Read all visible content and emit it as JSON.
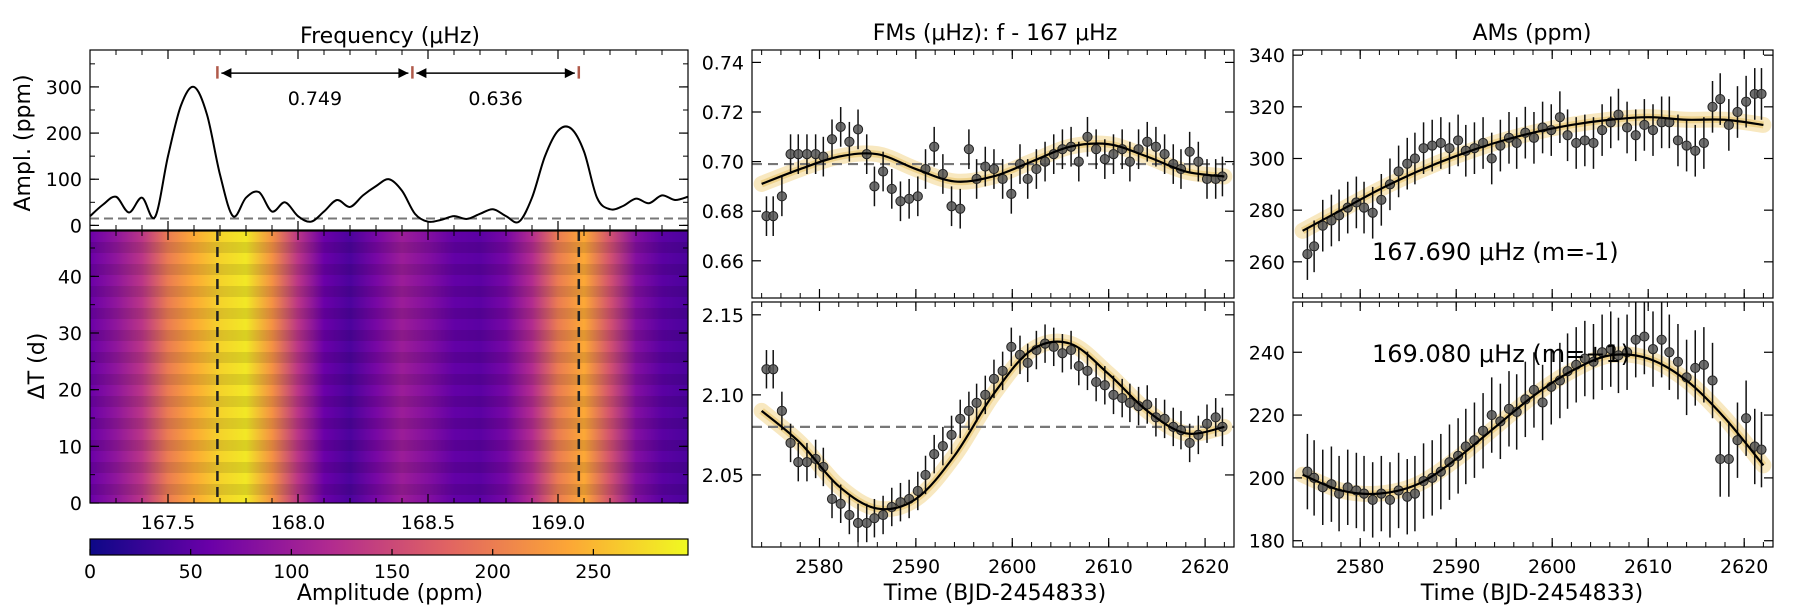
{
  "chart_data": [
    {
      "id": "spectrum",
      "type": "line",
      "title": "Frequency (μHz)",
      "ylabel": "Ampl. (ppm)",
      "xlim": [
        167.2,
        169.5
      ],
      "ylim": [
        -10,
        380
      ],
      "yticks": [
        0,
        100,
        200,
        300
      ],
      "x": [
        167.2,
        167.25,
        167.3,
        167.35,
        167.4,
        167.45,
        167.5,
        167.55,
        167.6,
        167.65,
        167.7,
        167.75,
        167.8,
        167.85,
        167.9,
        167.95,
        168.0,
        168.05,
        168.1,
        168.15,
        168.2,
        168.25,
        168.3,
        168.35,
        168.4,
        168.45,
        168.5,
        168.55,
        168.6,
        168.65,
        168.7,
        168.75,
        168.8,
        168.85,
        168.9,
        168.95,
        169.0,
        169.05,
        169.1,
        169.15,
        169.2,
        169.25,
        169.3,
        169.35,
        169.4,
        169.45,
        169.5
      ],
      "y": [
        20,
        45,
        62,
        28,
        60,
        18,
        150,
        260,
        300,
        240,
        110,
        20,
        60,
        72,
        30,
        50,
        20,
        8,
        30,
        55,
        40,
        65,
        85,
        100,
        75,
        25,
        8,
        12,
        20,
        14,
        25,
        35,
        20,
        8,
        60,
        150,
        205,
        210,
        160,
        60,
        35,
        42,
        58,
        48,
        65,
        55,
        62
      ],
      "threshold": 15,
      "markers": [
        167.69,
        168.44,
        169.08
      ],
      "annotations": [
        {
          "text": "0.749",
          "from": 167.69,
          "to": 168.44,
          "level": 330
        },
        {
          "text": "0.636",
          "from": 168.44,
          "to": 169.08,
          "level": 330
        }
      ]
    },
    {
      "id": "heatmap",
      "type": "heatmap",
      "ylabel": "ΔT (d)",
      "xlim": [
        167.2,
        169.5
      ],
      "ylim": [
        0,
        48
      ],
      "xticks": [
        167.5,
        168.0,
        168.5,
        169.0
      ],
      "xtick_labels": [
        "167.5",
        "168.0",
        "168.5",
        "169.0"
      ],
      "yticks": [
        0,
        10,
        20,
        30,
        40
      ],
      "vlines": [
        167.69,
        169.08
      ],
      "profile": [
        [
          167.2,
          60
        ],
        [
          167.3,
          90
        ],
        [
          167.4,
          130
        ],
        [
          167.5,
          200
        ],
        [
          167.6,
          240
        ],
        [
          167.7,
          270
        ],
        [
          167.8,
          285
        ],
        [
          167.9,
          220
        ],
        [
          168.0,
          130
        ],
        [
          168.1,
          60
        ],
        [
          168.2,
          40
        ],
        [
          168.3,
          70
        ],
        [
          168.4,
          100
        ],
        [
          168.5,
          80
        ],
        [
          168.6,
          55
        ],
        [
          168.7,
          50
        ],
        [
          168.8,
          70
        ],
        [
          168.9,
          120
        ],
        [
          169.0,
          200
        ],
        [
          169.1,
          240
        ],
        [
          169.2,
          160
        ],
        [
          169.3,
          80
        ],
        [
          169.4,
          50
        ],
        [
          169.5,
          40
        ]
      ]
    },
    {
      "id": "colorbar",
      "type": "colorbar",
      "xlabel": "Amplitude (ppm)",
      "range": [
        0,
        297
      ],
      "ticks": [
        0,
        50,
        100,
        150,
        200,
        250
      ],
      "colors": [
        "#0d0887",
        "#6a00a8",
        "#b12a90",
        "#e16462",
        "#fca636",
        "#f0f921"
      ]
    },
    {
      "id": "fm1",
      "type": "scatter",
      "title": "FMs (μHz): f - 167 μHz",
      "xlim": [
        2573,
        2623
      ],
      "ylim": [
        0.645,
        0.745
      ],
      "yticks": [
        0.66,
        0.68,
        0.7,
        0.72,
        0.74
      ],
      "ytick_labels": [
        "0.66",
        "0.68",
        "0.70",
        "0.72",
        "0.74"
      ],
      "reference": 0.699,
      "x": [
        2574.5,
        2575.2,
        2576.1,
        2577.0,
        2577.8,
        2578.7,
        2579.6,
        2580.4,
        2581.3,
        2582.2,
        2583.1,
        2584.0,
        2584.9,
        2585.7,
        2586.6,
        2587.5,
        2588.4,
        2589.3,
        2590.2,
        2591.0,
        2591.9,
        2592.8,
        2593.7,
        2594.6,
        2595.5,
        2596.3,
        2597.2,
        2598.1,
        2599.0,
        2599.9,
        2600.8,
        2601.6,
        2602.5,
        2603.4,
        2604.3,
        2605.2,
        2606.1,
        2606.9,
        2607.8,
        2608.7,
        2609.6,
        2610.5,
        2611.4,
        2612.2,
        2613.1,
        2614.0,
        2614.9,
        2615.8,
        2616.7,
        2617.5,
        2618.4,
        2619.3,
        2620.2,
        2621.1,
        2621.8
      ],
      "y": [
        0.678,
        0.678,
        0.686,
        0.703,
        0.703,
        0.703,
        0.703,
        0.702,
        0.709,
        0.714,
        0.708,
        0.713,
        0.703,
        0.69,
        0.696,
        0.689,
        0.684,
        0.685,
        0.686,
        0.697,
        0.706,
        0.695,
        0.682,
        0.681,
        0.705,
        0.693,
        0.698,
        0.697,
        0.693,
        0.687,
        0.699,
        0.693,
        0.697,
        0.7,
        0.703,
        0.705,
        0.706,
        0.7,
        0.71,
        0.705,
        0.701,
        0.703,
        0.705,
        0.7,
        0.705,
        0.708,
        0.706,
        0.703,
        0.699,
        0.697,
        0.704,
        0.7,
        0.693,
        0.693,
        0.694
      ],
      "err": 0.008,
      "model_x": [
        2574,
        2578,
        2582,
        2586,
        2590,
        2594,
        2598,
        2602,
        2606,
        2610,
        2614,
        2618,
        2622
      ],
      "model_y": [
        0.691,
        0.697,
        0.702,
        0.703,
        0.697,
        0.692,
        0.694,
        0.7,
        0.706,
        0.707,
        0.702,
        0.696,
        0.694
      ]
    },
    {
      "id": "fm2",
      "type": "scatter",
      "xlabel": "Time (BJD-2454833)",
      "xlim": [
        2573,
        2623
      ],
      "ylim": [
        2.005,
        2.158
      ],
      "xticks": [
        2580,
        2590,
        2600,
        2610,
        2620
      ],
      "yticks": [
        2.05,
        2.1,
        2.15
      ],
      "ytick_labels": [
        "2.05",
        "2.10",
        "2.15"
      ],
      "reference": 2.08,
      "x": [
        2574.5,
        2575.2,
        2576.1,
        2577.0,
        2577.8,
        2578.7,
        2579.6,
        2580.4,
        2581.3,
        2582.2,
        2583.1,
        2584.0,
        2584.9,
        2585.7,
        2586.6,
        2587.5,
        2588.4,
        2589.3,
        2590.2,
        2591.0,
        2591.9,
        2592.8,
        2593.7,
        2594.6,
        2595.5,
        2596.3,
        2597.2,
        2598.1,
        2599.0,
        2599.9,
        2600.8,
        2601.6,
        2602.5,
        2603.4,
        2604.3,
        2605.2,
        2606.1,
        2606.9,
        2607.8,
        2608.7,
        2609.6,
        2610.5,
        2611.4,
        2612.2,
        2613.1,
        2614.0,
        2614.9,
        2615.8,
        2616.7,
        2617.5,
        2618.4,
        2619.3,
        2620.2,
        2621.1,
        2621.8
      ],
      "y": [
        2.116,
        2.116,
        2.09,
        2.07,
        2.058,
        2.058,
        2.06,
        2.055,
        2.035,
        2.032,
        2.025,
        2.02,
        2.02,
        2.023,
        2.025,
        2.03,
        2.033,
        2.035,
        2.04,
        2.05,
        2.063,
        2.068,
        2.075,
        2.085,
        2.09,
        2.095,
        2.1,
        2.11,
        2.115,
        2.13,
        2.125,
        2.12,
        2.128,
        2.132,
        2.13,
        2.126,
        2.128,
        2.118,
        2.115,
        2.108,
        2.106,
        2.1,
        2.098,
        2.095,
        2.093,
        2.094,
        2.086,
        2.085,
        2.08,
        2.078,
        2.07,
        2.075,
        2.082,
        2.086,
        2.08
      ],
      "err": 0.012,
      "model_x": [
        2574,
        2578,
        2582,
        2586,
        2590,
        2594,
        2598,
        2602,
        2606,
        2610,
        2614,
        2618,
        2622
      ],
      "model_y": [
        2.09,
        2.07,
        2.043,
        2.029,
        2.035,
        2.062,
        2.1,
        2.128,
        2.132,
        2.113,
        2.09,
        2.076,
        2.08
      ]
    },
    {
      "id": "am1",
      "type": "scatter",
      "title": "AMs (ppm)",
      "xlim": [
        2573,
        2623
      ],
      "ylim": [
        246,
        342
      ],
      "yticks": [
        260,
        280,
        300,
        320,
        340
      ],
      "annotation": "167.690 μHz (m=-1)",
      "x": [
        2574.5,
        2575.2,
        2576.1,
        2577.0,
        2577.8,
        2578.7,
        2579.6,
        2580.4,
        2581.3,
        2582.2,
        2583.1,
        2584.0,
        2584.9,
        2585.7,
        2586.6,
        2587.5,
        2588.4,
        2589.3,
        2590.2,
        2591.0,
        2591.9,
        2592.8,
        2593.7,
        2594.6,
        2595.5,
        2596.3,
        2597.2,
        2598.1,
        2599.0,
        2599.9,
        2600.8,
        2601.6,
        2602.5,
        2603.4,
        2604.3,
        2605.2,
        2606.1,
        2606.9,
        2607.8,
        2608.7,
        2609.6,
        2610.5,
        2611.4,
        2612.2,
        2613.1,
        2614.0,
        2614.9,
        2615.8,
        2616.7,
        2617.5,
        2618.4,
        2619.3,
        2620.2,
        2621.1,
        2621.8
      ],
      "y": [
        263,
        266,
        274,
        276,
        278,
        281,
        283,
        281,
        279,
        284,
        290,
        295,
        298,
        300,
        304,
        305,
        306,
        304,
        307,
        303,
        304,
        306,
        300,
        305,
        308,
        306,
        310,
        308,
        312,
        311,
        316,
        309,
        306,
        307,
        306,
        311,
        314,
        317,
        312,
        309,
        313,
        311,
        314,
        314,
        307,
        305,
        303,
        306,
        320,
        323,
        313,
        318,
        322,
        325,
        325
      ],
      "err": 10,
      "model_x": [
        2574,
        2578,
        2582,
        2586,
        2590,
        2594,
        2598,
        2602,
        2606,
        2610,
        2614,
        2618,
        2622
      ],
      "model_y": [
        272,
        280,
        288,
        295,
        301,
        306,
        310,
        313,
        315,
        316,
        315,
        315,
        313
      ]
    },
    {
      "id": "am2",
      "type": "scatter",
      "xlabel": "Time (BJD-2454833)",
      "xlim": [
        2573,
        2623
      ],
      "ylim": [
        178,
        256
      ],
      "xticks": [
        2580,
        2590,
        2600,
        2610,
        2620
      ],
      "yticks": [
        180,
        200,
        220,
        240
      ],
      "annotation": "169.080 μHz (m=+1)",
      "x": [
        2574.5,
        2575.2,
        2576.1,
        2577.0,
        2577.8,
        2578.7,
        2579.6,
        2580.4,
        2581.3,
        2582.2,
        2583.1,
        2584.0,
        2584.9,
        2585.7,
        2586.6,
        2587.5,
        2588.4,
        2589.3,
        2590.2,
        2591.0,
        2591.9,
        2592.8,
        2593.7,
        2594.6,
        2595.5,
        2596.3,
        2597.2,
        2598.1,
        2599.0,
        2599.9,
        2600.8,
        2601.6,
        2602.5,
        2603.4,
        2604.3,
        2605.2,
        2606.1,
        2606.9,
        2607.8,
        2608.7,
        2609.6,
        2610.5,
        2611.4,
        2612.2,
        2613.1,
        2614.0,
        2614.9,
        2615.8,
        2616.7,
        2617.5,
        2618.4,
        2619.3,
        2620.2,
        2621.1,
        2621.8
      ],
      "y": [
        202,
        200,
        197,
        198,
        195,
        197,
        196,
        195,
        193,
        195,
        193,
        196,
        194,
        195,
        199,
        200,
        202,
        205,
        207,
        210,
        212,
        215,
        220,
        218,
        222,
        221,
        225,
        228,
        224,
        229,
        231,
        234,
        236,
        238,
        237,
        240,
        241,
        239,
        240,
        244,
        245,
        241,
        244,
        240,
        237,
        232,
        235,
        236,
        231,
        206,
        206,
        212,
        219,
        210,
        209
      ],
      "err": 12,
      "model_x": [
        2574,
        2578,
        2582,
        2586,
        2590,
        2594,
        2598,
        2602,
        2606,
        2610,
        2614,
        2618,
        2622
      ],
      "model_y": [
        201,
        196,
        195,
        198,
        206,
        216,
        226,
        234,
        239,
        238,
        231,
        219,
        204
      ]
    }
  ]
}
